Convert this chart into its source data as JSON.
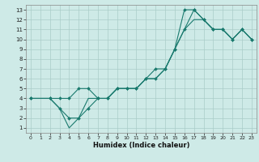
{
  "title": "",
  "xlabel": "Humidex (Indice chaleur)",
  "bg_color": "#ceeae7",
  "grid_color": "#aaccc8",
  "line_color": "#1a7a6e",
  "xlim": [
    -0.5,
    23.5
  ],
  "ylim": [
    0.5,
    13.5
  ],
  "xticks": [
    0,
    1,
    2,
    3,
    4,
    5,
    6,
    7,
    8,
    9,
    10,
    11,
    12,
    13,
    14,
    15,
    16,
    17,
    18,
    19,
    20,
    21,
    22,
    23
  ],
  "yticks": [
    1,
    2,
    3,
    4,
    5,
    6,
    7,
    8,
    9,
    10,
    11,
    12,
    13
  ],
  "line1_x": [
    0,
    2,
    3,
    4,
    5,
    6,
    7,
    8,
    9,
    10,
    11,
    12,
    13,
    14,
    15,
    16,
    17,
    18,
    19,
    20,
    21,
    22,
    23
  ],
  "line1_y": [
    4,
    4,
    4,
    4,
    5,
    5,
    4,
    4,
    5,
    5,
    5,
    6,
    7,
    7,
    9,
    11,
    13,
    12,
    11,
    11,
    10,
    11,
    10
  ],
  "line2_x": [
    0,
    2,
    3,
    4,
    5,
    6,
    7,
    8,
    9,
    10,
    11,
    12,
    13,
    14,
    15,
    16,
    17,
    18,
    19,
    20,
    21,
    22,
    23
  ],
  "line2_y": [
    4,
    4,
    3,
    2,
    2,
    3,
    4,
    4,
    5,
    5,
    5,
    6,
    6,
    7,
    9,
    13,
    13,
    12,
    11,
    11,
    10,
    11,
    10
  ],
  "line3_x": [
    0,
    2,
    3,
    4,
    5,
    6,
    7,
    8,
    9,
    10,
    11,
    12,
    13,
    14,
    15,
    16,
    17,
    18,
    19,
    20,
    21,
    22,
    23
  ],
  "line3_y": [
    4,
    4,
    3,
    1,
    2,
    4,
    4,
    4,
    5,
    5,
    5,
    6,
    6,
    7,
    9,
    11,
    12,
    12,
    11,
    11,
    10,
    11,
    10
  ]
}
